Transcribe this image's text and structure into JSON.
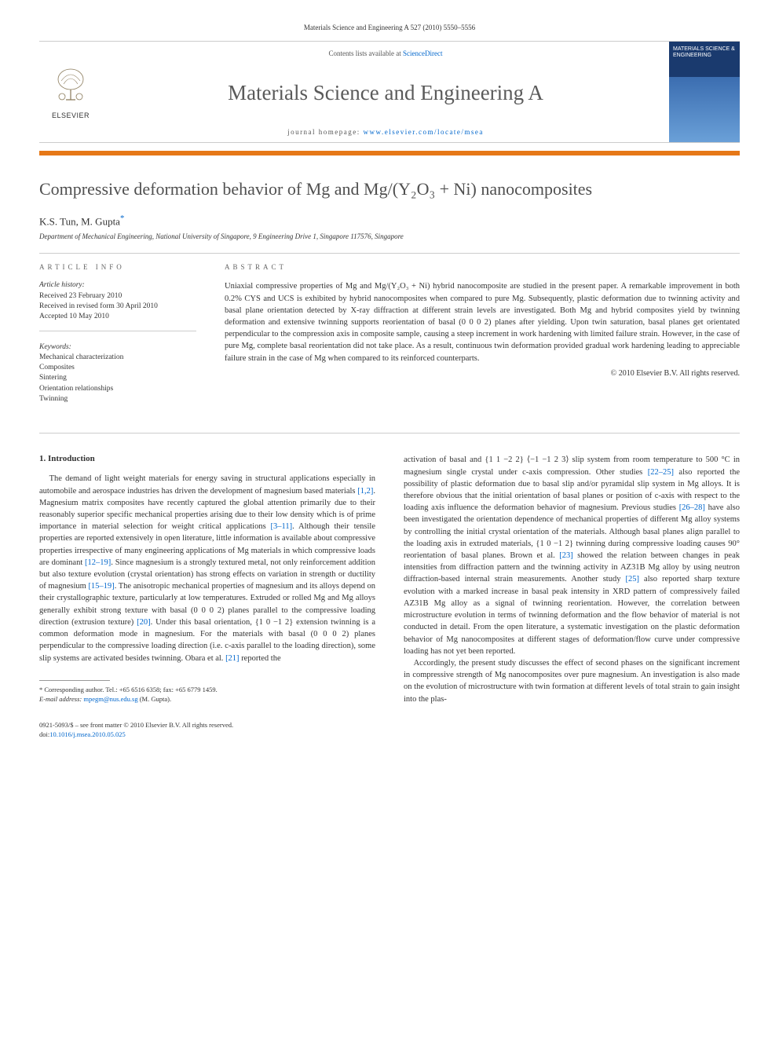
{
  "header": {
    "citation_line": "Materials Science and Engineering A 527 (2010) 5550–5556",
    "contents_prefix": "Contents lists available at ",
    "contents_link": "ScienceDirect",
    "journal_title": "Materials Science and Engineering A",
    "homepage_prefix": "journal homepage: ",
    "homepage_url": "www.elsevier.com/locate/msea",
    "publisher_label": "ELSEVIER",
    "cover_text": "MATERIALS SCIENCE & ENGINEERING"
  },
  "colors": {
    "orange_bar": "#e67817",
    "link": "#0066cc",
    "journal_title": "#5a5a5a",
    "cover_top": "#1a3a6e",
    "cover_bottom": "#6aa0d8"
  },
  "article": {
    "title": "Compressive deformation behavior of Mg and Mg/(Y₂O₃ + Ni) nanocomposites",
    "authors": "K.S. Tun, M. Gupta",
    "corresponding_marker": "*",
    "affiliation": "Department of Mechanical Engineering, National University of Singapore, 9 Engineering Drive 1, Singapore 117576, Singapore"
  },
  "info": {
    "section_label": "ARTICLE INFO",
    "history_label": "Article history:",
    "received": "Received 23 February 2010",
    "revised": "Received in revised form 30 April 2010",
    "accepted": "Accepted 10 May 2010",
    "keywords_label": "Keywords:",
    "keywords": [
      "Mechanical characterization",
      "Composites",
      "Sintering",
      "Orientation relationships",
      "Twinning"
    ]
  },
  "abstract": {
    "section_label": "ABSTRACT",
    "text": "Uniaxial compressive properties of Mg and Mg/(Y₂O₃ + Ni) hybrid nanocomposite are studied in the present paper. A remarkable improvement in both 0.2% CYS and UCS is exhibited by hybrid nanocomposites when compared to pure Mg. Subsequently, plastic deformation due to twinning activity and basal plane orientation detected by X-ray diffraction at different strain levels are investigated. Both Mg and hybrid composites yield by twinning deformation and extensive twinning supports reorientation of basal (0 0 0 2) planes after yielding. Upon twin saturation, basal planes get orientated perpendicular to the compression axis in composite sample, causing a steep increment in work hardening with limited failure strain. However, in the case of pure Mg, complete basal reorientation did not take place. As a result, continuous twin deformation provided gradual work hardening leading to appreciable failure strain in the case of Mg when compared to its reinforced counterparts.",
    "copyright": "© 2010 Elsevier B.V. All rights reserved."
  },
  "body": {
    "sec1_heading": "1. Introduction",
    "col1_p1": "The demand of light weight materials for energy saving in structural applications especially in automobile and aerospace industries has driven the development of magnesium based materials [1,2]. Magnesium matrix composites have recently captured the global attention primarily due to their reasonably superior specific mechanical properties arising due to their low density which is of prime importance in material selection for weight critical applications [3–11]. Although their tensile properties are reported extensively in open literature, little information is available about compressive properties irrespective of many engineering applications of Mg materials in which compressive loads are dominant [12–19]. Since magnesium is a strongly textured metal, not only reinforcement addition but also texture evolution (crystal orientation) has strong effects on variation in strength or ductility of magnesium [15–19]. The anisotropic mechanical properties of magnesium and its alloys depend on their crystallographic texture, particularly at low temperatures. Extruded or rolled Mg and Mg alloys generally exhibit strong texture with basal (0 0 0 2) planes parallel to the compressive loading direction (extrusion texture) [20]. Under this basal orientation, {1 0 −1 2} extension twinning is a common deformation mode in magnesium. For the materials with basal (0 0 0 2) planes perpendicular to the compressive loading direction (i.e. c-axis parallel to the loading direction), some slip systems are activated besides twinning. Obara et al. [21] reported the",
    "col2_p1": "activation of basal and {1 1 −2 2} ⟨−1 −1 2 3⟩ slip system from room temperature to 500 °C in magnesium single crystal under c-axis compression. Other studies [22–25] also reported the possibility of plastic deformation due to basal slip and/or pyramidal slip system in Mg alloys. It is therefore obvious that the initial orientation of basal planes or position of c-axis with respect to the loading axis influence the deformation behavior of magnesium. Previous studies [26–28] have also been investigated the orientation dependence of mechanical properties of different Mg alloy systems by controlling the initial crystal orientation of the materials. Although basal planes align parallel to the loading axis in extruded materials, {1 0 −1 2} twinning during compressive loading causes 90° reorientation of basal planes. Brown et al. [23] showed the relation between changes in peak intensities from diffraction pattern and the twinning activity in AZ31B Mg alloy by using neutron diffraction-based internal strain measurements. Another study [25] also reported sharp texture evolution with a marked increase in basal peak intensity in XRD pattern of compressively failed AZ31B Mg alloy as a signal of twinning reorientation. However, the correlation between microstructure evolution in terms of twinning deformation and the flow behavior of material is not conducted in detail. From the open literature, a systematic investigation on the plastic deformation behavior of Mg nanocomposites at different stages of deformation/flow curve under compressive loading has not yet been reported.",
    "col2_p2": "Accordingly, the present study discusses the effect of second phases on the significant increment in compressive strength of Mg nanocomposites over pure magnesium. An investigation is also made on the evolution of microstructure with twin formation at different levels of total strain to gain insight into the plas-"
  },
  "footnote": {
    "corresponding": "* Corresponding author. Tel.: +65 6516 6358; fax: +65 6779 1459.",
    "email_label": "E-mail address: ",
    "email": "mpegm@nus.edu.sg",
    "email_suffix": " (M. Gupta)."
  },
  "footer": {
    "line1": "0921-5093/$ – see front matter © 2010 Elsevier B.V. All rights reserved.",
    "doi_prefix": "doi:",
    "doi": "10.1016/j.msea.2010.05.025"
  },
  "refs_inline": {
    "r1_2": "[1,2]",
    "r3_11": "[3–11]",
    "r12_19": "[12–19]",
    "r15_19": "[15–19]",
    "r20": "[20]",
    "r21": "[21]",
    "r22_25": "[22–25]",
    "r23": "[23]",
    "r25": "[25]",
    "r26_28": "[26–28]"
  }
}
